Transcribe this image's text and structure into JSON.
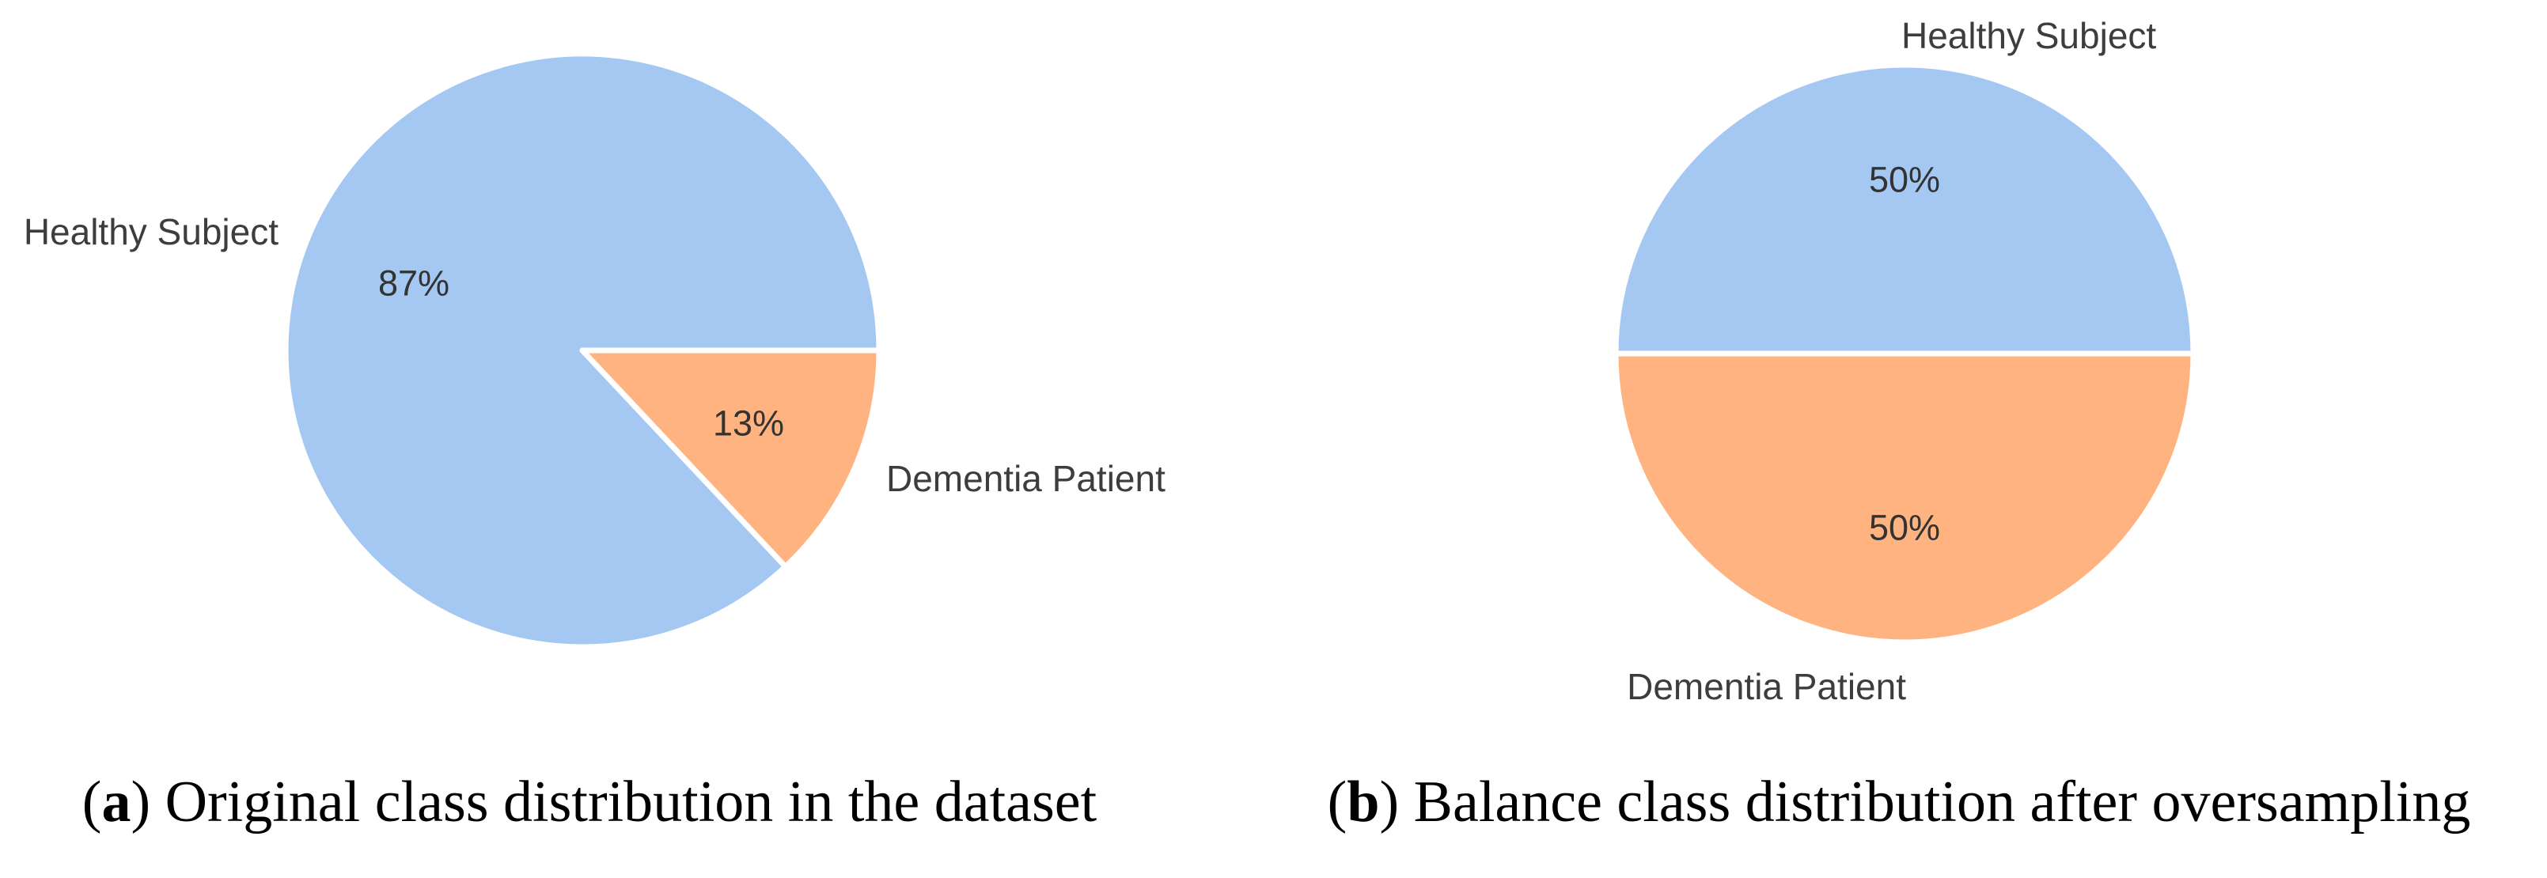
{
  "figure": {
    "background": "#ffffff",
    "text_color": "#3d3d3d",
    "pct_text_color": "#333333",
    "caption_text_color": "#000000",
    "captions": [
      {
        "open": "(",
        "letter": "a",
        "rest": ") Original class distribution in the dataset"
      },
      {
        "open": "(",
        "letter": "b",
        "rest": ") Balance class distribution after oversampling"
      }
    ]
  },
  "chart_data": [
    {
      "type": "pie",
      "title": "",
      "labels": [
        "Healthy Subject",
        "Dementia Patient"
      ],
      "values": [
        87,
        13
      ],
      "percent_labels": [
        "87%",
        "13%"
      ],
      "colors": [
        "#a4c8f2",
        "#ffb381"
      ],
      "start_angle": 0,
      "direction": "counterclockwise",
      "wedge_edge_color": "#ffffff",
      "legend": "none",
      "caption": "(a) Original class distribution in the dataset"
    },
    {
      "type": "pie",
      "title": "",
      "labels": [
        "Healthy Subject",
        "Dementia Patient"
      ],
      "values": [
        50,
        50
      ],
      "percent_labels": [
        "50%",
        "50%"
      ],
      "colors": [
        "#a4c8f2",
        "#ffb381"
      ],
      "start_angle": 0,
      "direction": "counterclockwise",
      "wedge_edge_color": "#ffffff",
      "legend": "none",
      "caption": "(b) Balance class distribution after oversampling"
    }
  ]
}
